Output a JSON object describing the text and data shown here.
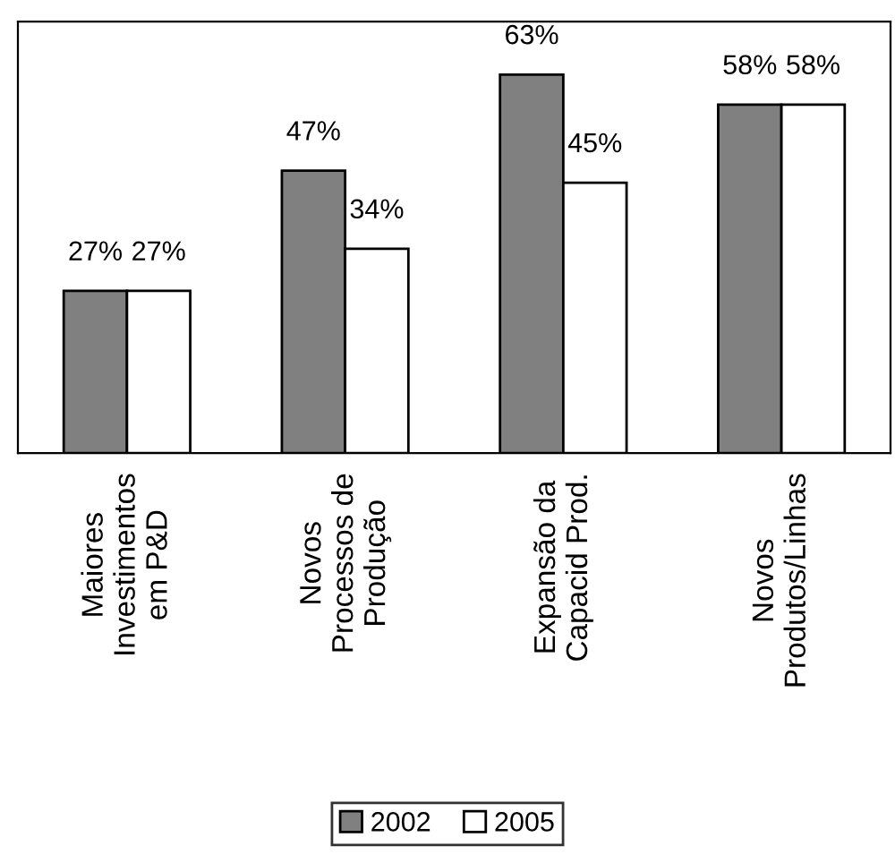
{
  "chart_data": {
    "type": "bar",
    "categories": [
      "Maiores Investimentos em P&D",
      "Novos Processos de Produção",
      "Expansão da Capacid Prod.",
      "Novos Produtos/Linhas"
    ],
    "series": [
      {
        "name": "2002",
        "color": "#808080",
        "values": [
          27,
          47,
          63,
          58
        ],
        "value_labels": [
          "27%",
          "47%",
          "63%",
          "58%"
        ]
      },
      {
        "name": "2005",
        "color": "#ffffff",
        "values": [
          27,
          34,
          45,
          58
        ],
        "value_labels": [
          "27%",
          "34%",
          "45%",
          "58%"
        ]
      }
    ],
    "legend": "bottom",
    "tick_labels": "x"
  }
}
